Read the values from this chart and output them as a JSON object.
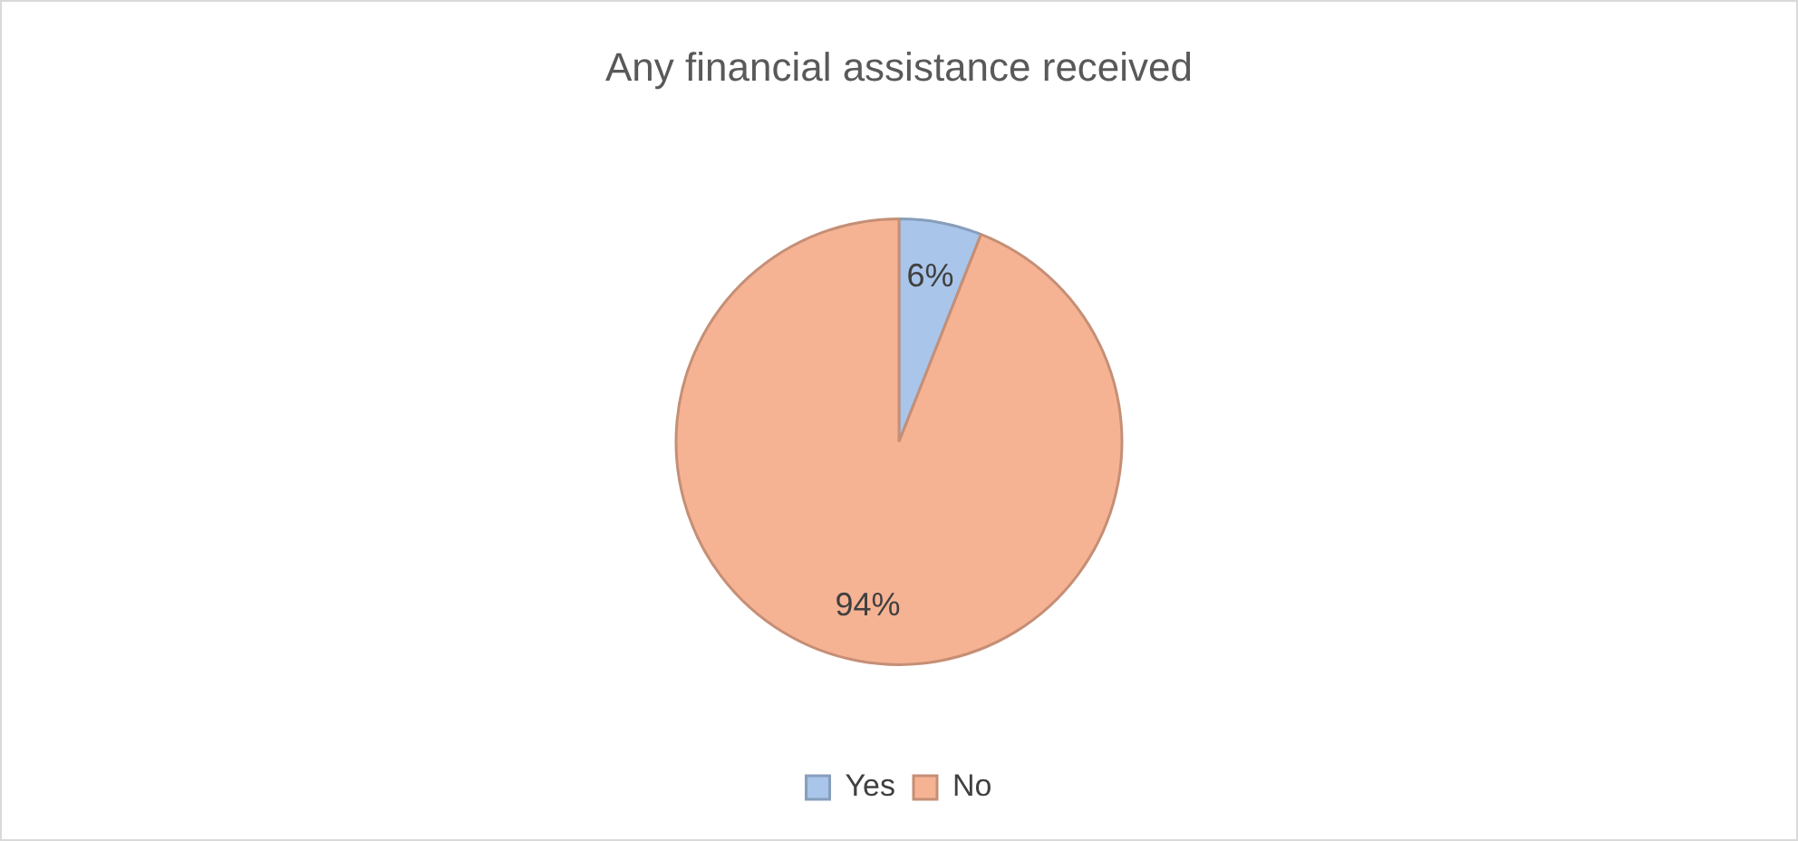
{
  "chart_data": {
    "type": "pie",
    "title": "Any financial assistance received",
    "categories": [
      "Yes",
      "No"
    ],
    "values": [
      6,
      94
    ],
    "colors": [
      "#a9c5ea",
      "#f6b394"
    ],
    "value_labels": [
      "6%",
      "94%"
    ],
    "legend": "bottom"
  }
}
